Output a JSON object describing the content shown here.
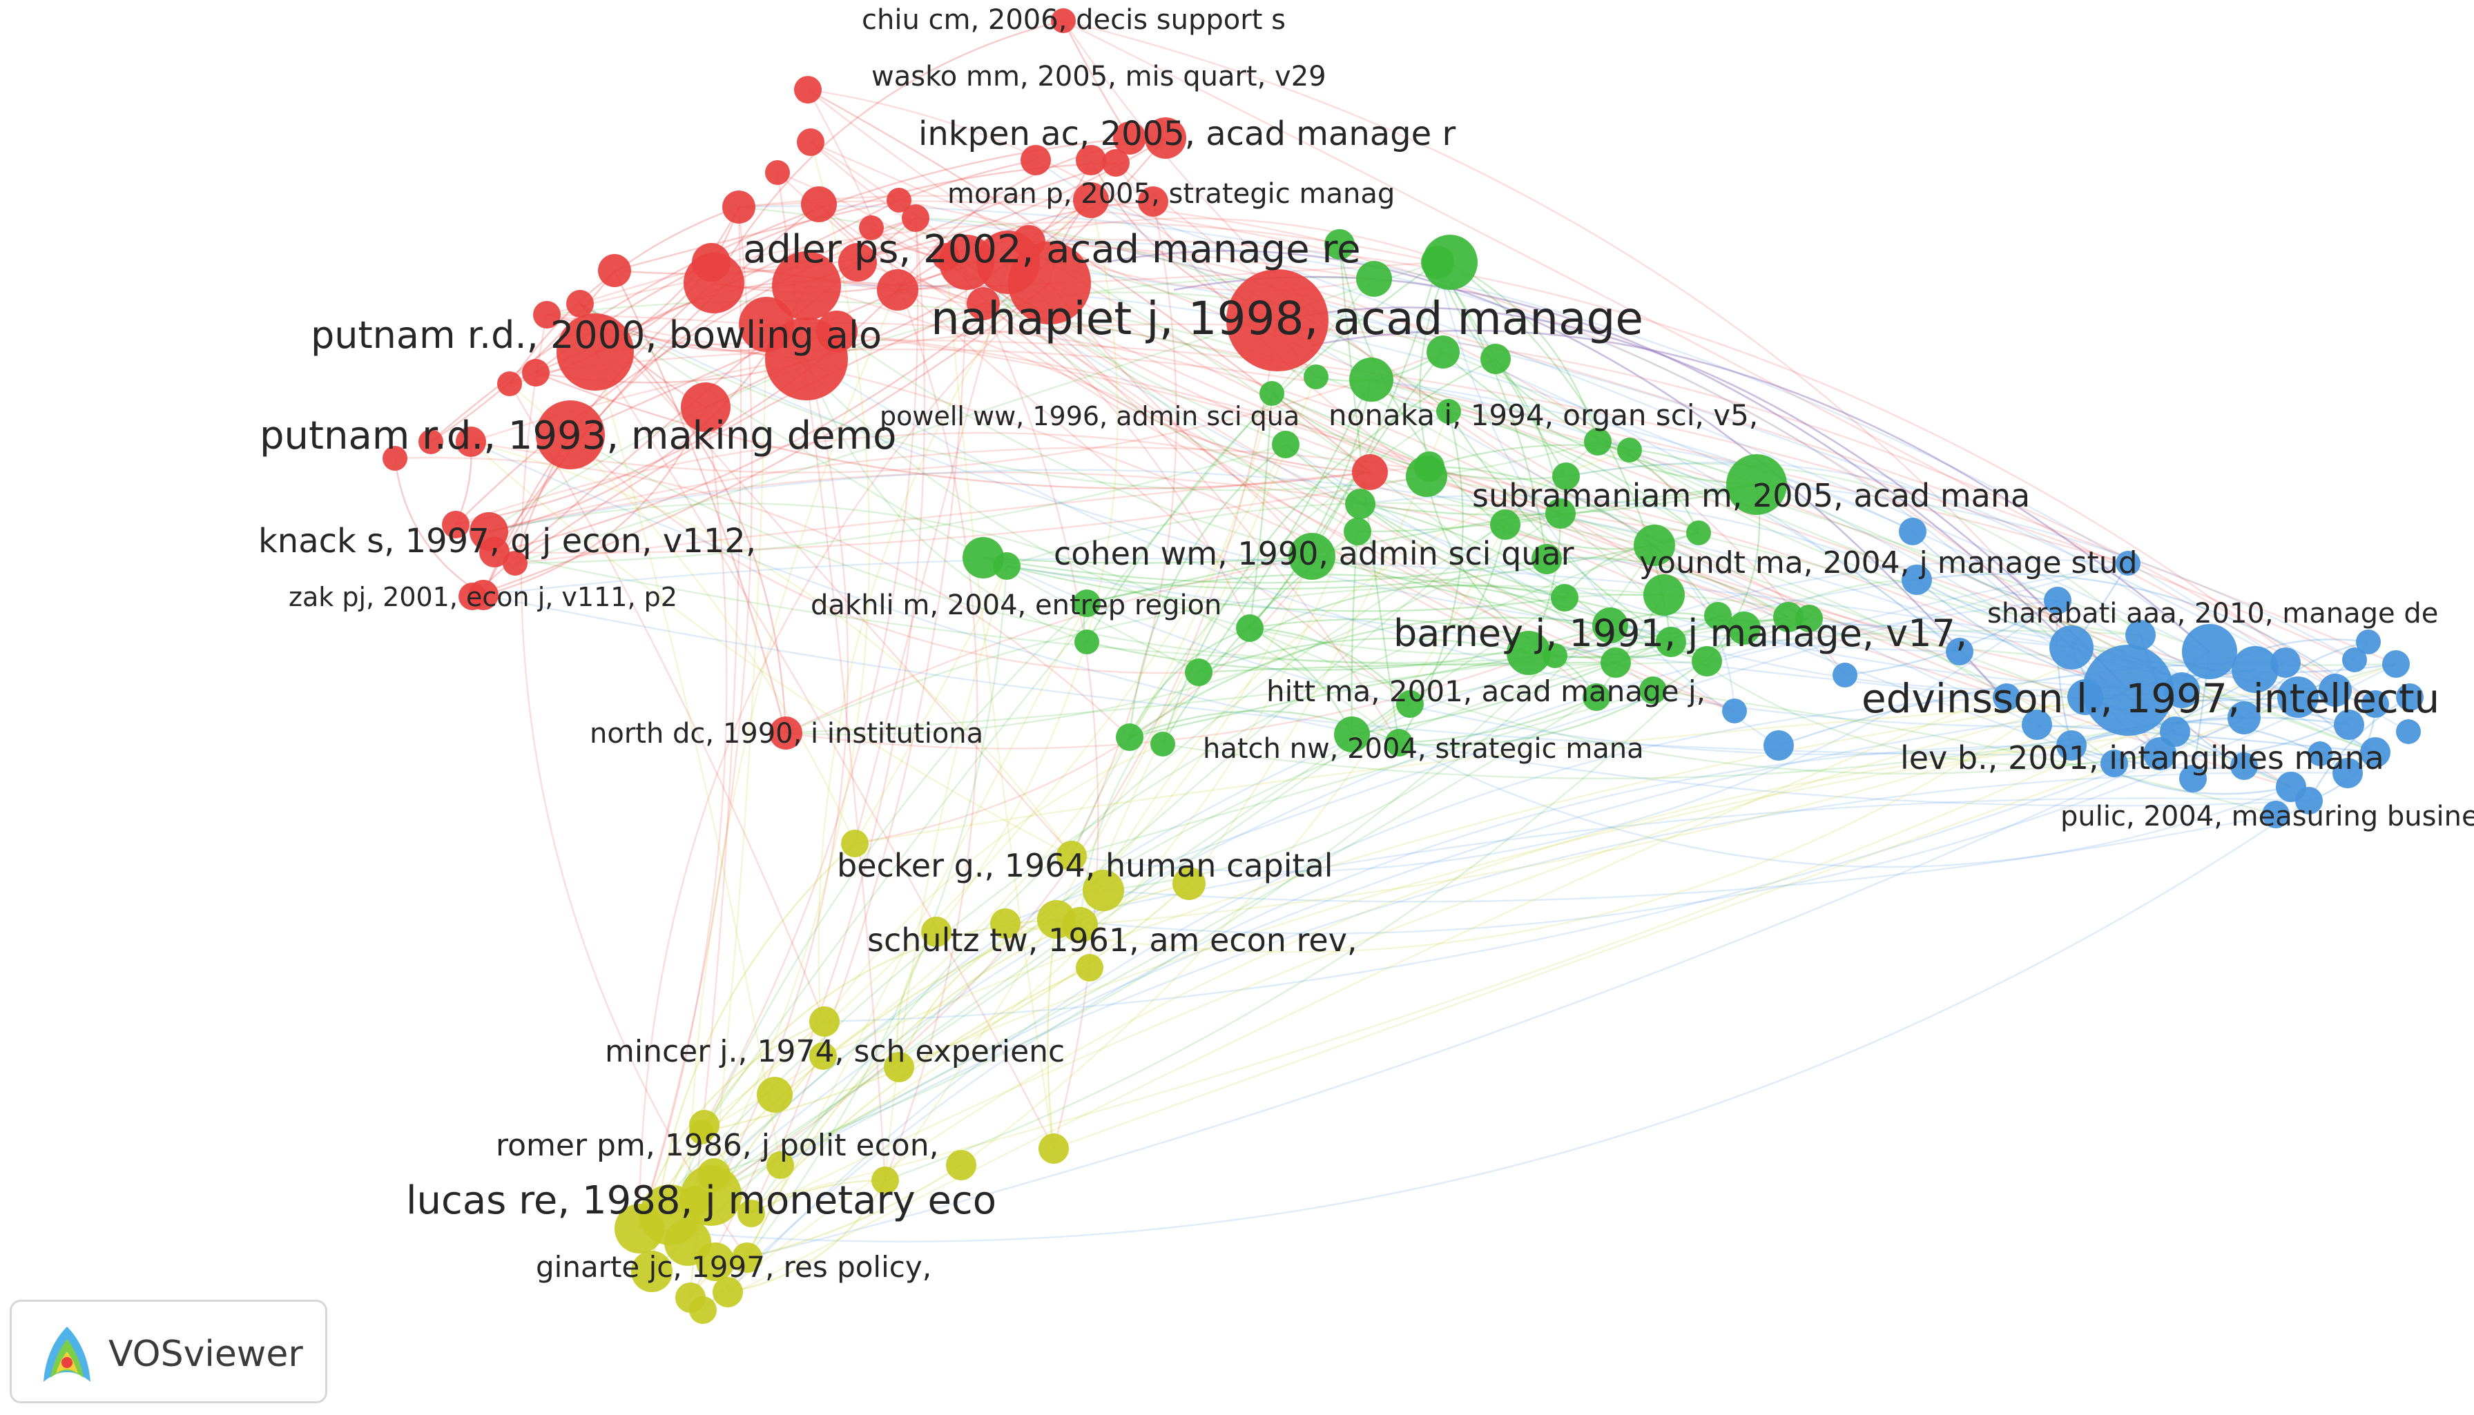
{
  "labels": [
    {
      "text": "chiu cm, 2006, decis support s",
      "cluster": "red"
    },
    {
      "text": "wasko mm, 2005, mis quart, v29",
      "cluster": "red"
    },
    {
      "text": "inkpen ac, 2005, acad manage r",
      "cluster": "red"
    },
    {
      "text": "moran p, 2005, strategic manag",
      "cluster": "red"
    },
    {
      "text": "adler ps, 2002, acad manage re",
      "cluster": "red"
    },
    {
      "text": "nahapiet j, 1998, acad manage",
      "cluster": "red"
    },
    {
      "text": "putnam r.d., 2000, bowling alo",
      "cluster": "red"
    },
    {
      "text": "putnam r.d., 1993, making demo",
      "cluster": "red"
    },
    {
      "text": "powell ww, 1996, admin sci qua",
      "cluster": "red"
    },
    {
      "text": "knack s, 1997, q j econ, v112,",
      "cluster": "red"
    },
    {
      "text": "zak pj, 2001, econ j, v111, p2",
      "cluster": "red"
    },
    {
      "text": "north dc, 1990, i institutiona",
      "cluster": "red"
    },
    {
      "text": "nonaka i, 1994, organ sci, v5,",
      "cluster": "green"
    },
    {
      "text": "subramaniam m, 2005, acad mana",
      "cluster": "green"
    },
    {
      "text": "cohen wm, 1990, admin sci quar",
      "cluster": "green"
    },
    {
      "text": "dakhli m, 2004, entrep region",
      "cluster": "green"
    },
    {
      "text": "youndt ma, 2004, j manage stud",
      "cluster": "green"
    },
    {
      "text": "barney j, 1991, j manage, v17,",
      "cluster": "green"
    },
    {
      "text": "hitt ma, 2001, acad manage j,",
      "cluster": "green"
    },
    {
      "text": "hatch nw, 2004, strategic mana",
      "cluster": "green"
    },
    {
      "text": "sharabati aaa, 2010, manage de",
      "cluster": "blue"
    },
    {
      "text": "edvinsson l., 1997, intellectu",
      "cluster": "blue"
    },
    {
      "text": "lev b., 2001, intangibles mana",
      "cluster": "blue"
    },
    {
      "text": "pulic, 2004, measuring busines",
      "cluster": "blue"
    },
    {
      "text": "becker g., 1964, human capital",
      "cluster": "yellow"
    },
    {
      "text": "schultz tw, 1961, am econ rev,",
      "cluster": "yellow"
    },
    {
      "text": "mincer j., 1974, sch experienc",
      "cluster": "yellow"
    },
    {
      "text": "romer pm, 1986, j polit econ,",
      "cluster": "yellow"
    },
    {
      "text": "lucas re, 1988, j monetary eco",
      "cluster": "yellow"
    },
    {
      "text": "ginarte jc, 1997, res policy,",
      "cluster": "yellow"
    }
  ],
  "colors": {
    "red": "#e8413f",
    "green": "#3cb93a",
    "blue": "#4694dc",
    "yellow": "#c4cb23",
    "purple": "#8f6fb8"
  },
  "branding": {
    "name": "VOSviewer",
    "icon": "vosviewer-logo-icon"
  }
}
